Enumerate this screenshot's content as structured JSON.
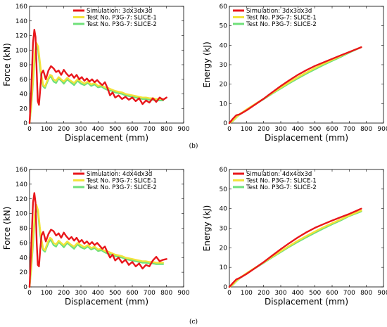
{
  "captions": [
    "(b)",
    "(c)"
  ],
  "colors": {
    "simulation": "#e8161b",
    "slice1": "#f2e33a",
    "slice2": "#6fe07a"
  },
  "chart_data": [
    {
      "type": "line",
      "xlabel": "Displacement (mm)",
      "ylabel": "Force (kN)",
      "xlim": [
        0,
        900
      ],
      "ylim": [
        0,
        160
      ],
      "xticks": [
        0,
        100,
        200,
        300,
        400,
        500,
        600,
        700,
        800,
        900
      ],
      "yticks": [
        0,
        20,
        40,
        60,
        80,
        100,
        120,
        140,
        160
      ],
      "legend_position": "top-right",
      "series": [
        {
          "name": "Simulation: 3dx3dx3d",
          "color": "#e8161b",
          "x": [
            0,
            10,
            20,
            28,
            35,
            42,
            48,
            55,
            62,
            70,
            80,
            95,
            110,
            125,
            140,
            155,
            170,
            185,
            200,
            215,
            230,
            245,
            260,
            275,
            290,
            305,
            320,
            335,
            350,
            365,
            380,
            395,
            410,
            425,
            440,
            455,
            470,
            485,
            500,
            520,
            540,
            560,
            580,
            600,
            620,
            640,
            660,
            680,
            700,
            720,
            740,
            760,
            780,
            800
          ],
          "y": [
            0,
            45,
            110,
            128,
            118,
            70,
            30,
            25,
            45,
            68,
            72,
            60,
            72,
            78,
            75,
            70,
            72,
            66,
            73,
            68,
            64,
            67,
            62,
            66,
            60,
            63,
            58,
            61,
            57,
            60,
            56,
            59,
            55,
            52,
            56,
            48,
            38,
            42,
            35,
            38,
            33,
            36,
            32,
            35,
            30,
            34,
            26,
            31,
            28,
            34,
            29,
            35,
            32,
            35
          ]
        },
        {
          "name": "Test No. P3G-7: SLICE-1",
          "color": "#f2e33a",
          "x": [
            0,
            10,
            20,
            30,
            40,
            50,
            60,
            70,
            80,
            90,
            100,
            110,
            120,
            130,
            140,
            155,
            170,
            185,
            200,
            220,
            240,
            260,
            280,
            300,
            320,
            340,
            360,
            380,
            400,
            420,
            440,
            460,
            480,
            500,
            520,
            540,
            560,
            580,
            600,
            620,
            640,
            660,
            680,
            700,
            720,
            740,
            760,
            780
          ],
          "y": [
            0,
            25,
            60,
            95,
            110,
            105,
            85,
            65,
            52,
            50,
            56,
            62,
            66,
            65,
            60,
            58,
            63,
            60,
            57,
            62,
            58,
            55,
            60,
            57,
            54,
            57,
            53,
            55,
            51,
            52,
            49,
            48,
            46,
            44,
            43,
            42,
            40,
            39,
            38,
            37,
            36,
            35,
            35,
            34,
            34,
            33,
            33,
            33
          ]
        },
        {
          "name": "Test No. P3G-7: SLICE-2",
          "color": "#6fe07a",
          "x": [
            0,
            10,
            20,
            30,
            40,
            50,
            60,
            70,
            80,
            90,
            100,
            110,
            120,
            130,
            140,
            155,
            170,
            185,
            200,
            220,
            240,
            260,
            280,
            300,
            320,
            340,
            360,
            380,
            400,
            420,
            440,
            460,
            480,
            500,
            520,
            540,
            560,
            580,
            600,
            620,
            640,
            660,
            680,
            700,
            720,
            740,
            760,
            780
          ],
          "y": [
            0,
            22,
            55,
            88,
            105,
            100,
            78,
            60,
            50,
            48,
            54,
            60,
            64,
            62,
            57,
            55,
            61,
            58,
            54,
            60,
            56,
            52,
            58,
            54,
            52,
            55,
            51,
            53,
            49,
            50,
            47,
            45,
            44,
            42,
            41,
            40,
            38,
            37,
            36,
            35,
            34,
            33,
            33,
            32,
            32,
            31,
            31,
            31
          ]
        }
      ]
    },
    {
      "type": "line",
      "xlabel": "Displacement (mm)",
      "ylabel": "Energy (kJ)",
      "xlim": [
        0,
        900
      ],
      "ylim": [
        0,
        60
      ],
      "xticks": [
        0,
        100,
        200,
        300,
        400,
        500,
        600,
        700,
        800,
        900
      ],
      "yticks": [
        0,
        10,
        20,
        30,
        40,
        50,
        60
      ],
      "legend_position": "top-left",
      "series": [
        {
          "name": "Simulation: 3dx3dx3d",
          "color": "#e8161b",
          "x": [
            0,
            20,
            40,
            60,
            80,
            100,
            150,
            200,
            250,
            300,
            350,
            400,
            450,
            500,
            550,
            600,
            650,
            700,
            770
          ],
          "y": [
            0,
            2.2,
            4.0,
            4.5,
            5.5,
            6.5,
            9.5,
            12.5,
            15.8,
            19.0,
            22.0,
            24.8,
            27.2,
            29.4,
            31.2,
            33.0,
            34.8,
            36.5,
            39.0
          ]
        },
        {
          "name": "Test No. P3G-7: SLICE-1",
          "color": "#f2e33a",
          "x": [
            0,
            20,
            40,
            60,
            80,
            100,
            150,
            200,
            250,
            300,
            350,
            400,
            450,
            500,
            550,
            600,
            650,
            700,
            770
          ],
          "y": [
            0,
            1.2,
            3.0,
            4.6,
            5.8,
            7.0,
            9.8,
            12.5,
            15.4,
            18.2,
            21.0,
            23.6,
            26.0,
            28.3,
            30.5,
            32.5,
            34.5,
            36.5,
            39.0
          ]
        },
        {
          "name": "Test No. P3G-7: SLICE-2",
          "color": "#6fe07a",
          "x": [
            0,
            20,
            40,
            60,
            80,
            100,
            150,
            200,
            250,
            300,
            350,
            400,
            450,
            500,
            550,
            600,
            650,
            700,
            770
          ],
          "y": [
            0,
            1.0,
            2.8,
            4.4,
            5.6,
            6.8,
            9.6,
            12.3,
            15.1,
            17.8,
            20.5,
            23.0,
            25.4,
            27.7,
            29.9,
            32.0,
            34.0,
            36.2,
            39.0
          ]
        }
      ]
    },
    {
      "type": "line",
      "xlabel": "Displacement (mm)",
      "ylabel": "Force (kN)",
      "xlim": [
        0,
        900
      ],
      "ylim": [
        0,
        160
      ],
      "xticks": [
        0,
        100,
        200,
        300,
        400,
        500,
        600,
        700,
        800,
        900
      ],
      "yticks": [
        0,
        20,
        40,
        60,
        80,
        100,
        120,
        140,
        160
      ],
      "legend_position": "top-right",
      "series": [
        {
          "name": "Simulation: 4dx4dx3d",
          "color": "#e8161b",
          "x": [
            0,
            10,
            20,
            28,
            35,
            42,
            48,
            55,
            62,
            70,
            80,
            95,
            110,
            125,
            140,
            155,
            170,
            185,
            200,
            215,
            230,
            245,
            260,
            275,
            290,
            305,
            320,
            335,
            350,
            365,
            380,
            395,
            410,
            425,
            440,
            455,
            470,
            485,
            500,
            520,
            540,
            560,
            580,
            600,
            620,
            640,
            660,
            680,
            700,
            720,
            740,
            760,
            780,
            800
          ],
          "y": [
            0,
            55,
            115,
            128,
            115,
            60,
            30,
            28,
            50,
            70,
            75,
            62,
            72,
            78,
            76,
            70,
            73,
            67,
            74,
            69,
            65,
            68,
            63,
            67,
            61,
            64,
            59,
            62,
            58,
            61,
            57,
            60,
            56,
            52,
            55,
            47,
            40,
            44,
            36,
            40,
            33,
            37,
            30,
            34,
            28,
            32,
            25,
            30,
            28,
            36,
            41,
            35,
            37,
            38
          ]
        },
        {
          "name": "Test No. P3G-7: SLICE-1",
          "color": "#f2e33a",
          "x": [
            0,
            10,
            20,
            30,
            40,
            50,
            60,
            70,
            80,
            90,
            100,
            110,
            120,
            130,
            140,
            155,
            170,
            185,
            200,
            220,
            240,
            260,
            280,
            300,
            320,
            340,
            360,
            380,
            400,
            420,
            440,
            460,
            480,
            500,
            520,
            540,
            560,
            580,
            600,
            620,
            640,
            660,
            680,
            700,
            720,
            740,
            760,
            780
          ],
          "y": [
            0,
            28,
            65,
            98,
            112,
            104,
            82,
            64,
            52,
            50,
            57,
            63,
            67,
            65,
            60,
            58,
            63,
            60,
            57,
            62,
            58,
            55,
            60,
            57,
            54,
            57,
            53,
            55,
            51,
            52,
            49,
            48,
            46,
            44,
            43,
            42,
            40,
            39,
            38,
            37,
            36,
            35,
            35,
            34,
            34,
            33,
            33,
            33
          ]
        },
        {
          "name": "Test No. P3G-7: SLICE-2",
          "color": "#6fe07a",
          "x": [
            0,
            10,
            20,
            30,
            40,
            50,
            60,
            70,
            80,
            90,
            100,
            110,
            120,
            130,
            140,
            155,
            170,
            185,
            200,
            220,
            240,
            260,
            280,
            300,
            320,
            340,
            360,
            380,
            400,
            420,
            440,
            460,
            480,
            500,
            520,
            540,
            560,
            580,
            600,
            620,
            640,
            660,
            680,
            700,
            720,
            740,
            760,
            780
          ],
          "y": [
            0,
            24,
            58,
            90,
            108,
            100,
            76,
            58,
            50,
            48,
            54,
            60,
            64,
            62,
            57,
            55,
            61,
            58,
            54,
            60,
            56,
            52,
            58,
            54,
            52,
            55,
            51,
            53,
            49,
            50,
            47,
            45,
            44,
            42,
            41,
            40,
            38,
            37,
            36,
            35,
            34,
            33,
            33,
            32,
            32,
            31,
            31,
            31
          ]
        }
      ]
    },
    {
      "type": "line",
      "xlabel": "Displacement (mm)",
      "ylabel": "Energy (kJ)",
      "xlim": [
        0,
        900
      ],
      "ylim": [
        0,
        60
      ],
      "xticks": [
        0,
        100,
        200,
        300,
        400,
        500,
        600,
        700,
        800,
        900
      ],
      "yticks": [
        0,
        10,
        20,
        30,
        40,
        50,
        60
      ],
      "legend_position": "top-left",
      "series": [
        {
          "name": "Simulation: 4dx4dx3d",
          "color": "#e8161b",
          "x": [
            0,
            20,
            40,
            60,
            80,
            100,
            150,
            200,
            250,
            300,
            350,
            400,
            450,
            500,
            550,
            600,
            650,
            700,
            770
          ],
          "y": [
            0,
            2.0,
            3.8,
            4.6,
            5.6,
            6.6,
            9.6,
            12.7,
            16.0,
            19.3,
            22.4,
            25.3,
            27.9,
            30.2,
            32.1,
            33.9,
            35.6,
            37.3,
            40.0
          ]
        },
        {
          "name": "Test No. P3G-7: SLICE-1",
          "color": "#f2e33a",
          "x": [
            0,
            20,
            40,
            60,
            80,
            100,
            150,
            200,
            250,
            300,
            350,
            400,
            450,
            500,
            550,
            600,
            650,
            700,
            770
          ],
          "y": [
            0,
            1.2,
            3.0,
            4.6,
            5.8,
            7.0,
            9.8,
            12.5,
            15.4,
            18.2,
            21.0,
            23.6,
            26.0,
            28.3,
            30.5,
            32.5,
            34.5,
            36.5,
            39.0
          ]
        },
        {
          "name": "Test No. P3G-7: SLICE-2",
          "color": "#6fe07a",
          "x": [
            0,
            20,
            40,
            60,
            80,
            100,
            150,
            200,
            250,
            300,
            350,
            400,
            450,
            500,
            550,
            600,
            650,
            700,
            770
          ],
          "y": [
            0,
            1.0,
            2.8,
            4.4,
            5.6,
            6.8,
            9.6,
            12.3,
            15.1,
            17.8,
            20.5,
            23.0,
            25.4,
            27.7,
            29.9,
            32.0,
            34.0,
            36.2,
            38.6
          ]
        }
      ]
    }
  ]
}
